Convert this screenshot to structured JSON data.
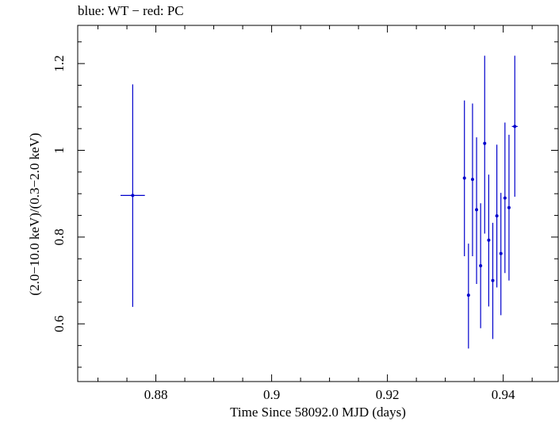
{
  "chart_data": {
    "type": "scatter",
    "title": "blue: WT − red: PC",
    "xlabel": "Time Since 58092.0 MJD (days)",
    "ylabel": "(2.0−10.0 keV)/(0.3−2.0 keV)",
    "xlim": [
      0.8665,
      0.9495
    ],
    "ylim": [
      0.467,
      1.288
    ],
    "xticks": [
      0.88,
      0.9,
      0.92,
      0.94
    ],
    "xtick_labels": [
      "0.88",
      "0.9",
      "0.92",
      "0.94"
    ],
    "yticks": [
      0.6,
      0.8,
      1.0,
      1.2
    ],
    "ytick_labels": [
      "0.6",
      "0.8",
      "1",
      "1.2"
    ],
    "grid": false,
    "series": [
      {
        "color": "#0000cc",
        "points": [
          {
            "x": 0.876,
            "y": 0.896,
            "xerr": 0.0021,
            "ylo": 0.639,
            "yhi": 1.152
          },
          {
            "x": 0.9333,
            "y": 0.936,
            "xerr": 0.0002,
            "ylo": 0.756,
            "yhi": 1.115
          },
          {
            "x": 0.934,
            "y": 0.666,
            "xerr": 0.0002,
            "ylo": 0.543,
            "yhi": 0.785
          },
          {
            "x": 0.9347,
            "y": 0.933,
            "xerr": 0.0002,
            "ylo": 0.756,
            "yhi": 1.108
          },
          {
            "x": 0.9354,
            "y": 0.863,
            "xerr": 0.0002,
            "ylo": 0.692,
            "yhi": 1.03
          },
          {
            "x": 0.9361,
            "y": 0.734,
            "xerr": 0.0002,
            "ylo": 0.59,
            "yhi": 0.878
          },
          {
            "x": 0.9368,
            "y": 1.016,
            "xerr": 0.0002,
            "ylo": 0.808,
            "yhi": 1.218
          },
          {
            "x": 0.9375,
            "y": 0.793,
            "xerr": 0.0002,
            "ylo": 0.64,
            "yhi": 0.944
          },
          {
            "x": 0.9382,
            "y": 0.7,
            "xerr": 0.0002,
            "ylo": 0.565,
            "yhi": 0.833
          },
          {
            "x": 0.9389,
            "y": 0.849,
            "xerr": 0.0002,
            "ylo": 0.684,
            "yhi": 1.013
          },
          {
            "x": 0.9396,
            "y": 0.762,
            "xerr": 0.0002,
            "ylo": 0.62,
            "yhi": 0.902
          },
          {
            "x": 0.9403,
            "y": 0.89,
            "xerr": 0.0002,
            "ylo": 0.717,
            "yhi": 1.064
          },
          {
            "x": 0.941,
            "y": 0.868,
            "xerr": 0.0002,
            "ylo": 0.7,
            "yhi": 1.036
          },
          {
            "x": 0.942,
            "y": 1.055,
            "xerr": 0.0005,
            "ylo": 0.893,
            "yhi": 1.218
          }
        ]
      }
    ]
  }
}
